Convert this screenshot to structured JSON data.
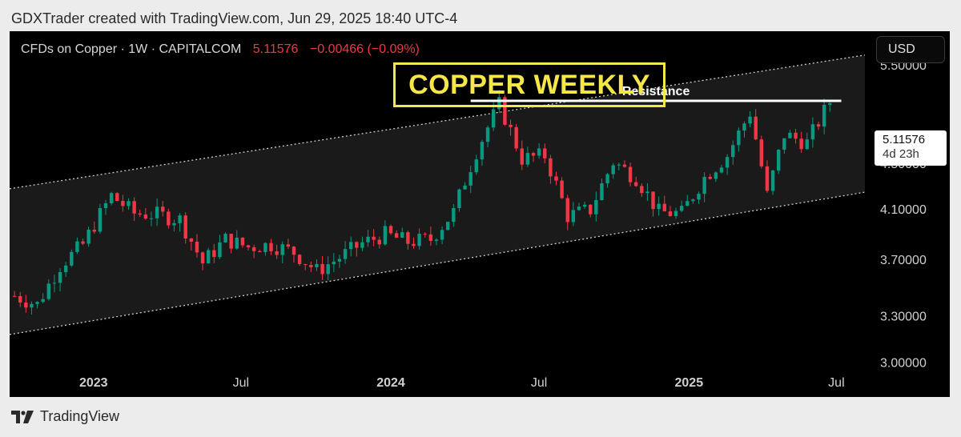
{
  "caption": "GDXTrader created with TradingView.com, Jun 29, 2025 18:40 UTC-4",
  "header": {
    "symbol": "CFDs on Copper · 1W · CAPITALCOM",
    "price": "5.11576",
    "change": "−0.00466 (−0.09%)",
    "currency": "USD"
  },
  "chart_title": "COPPER WEEKLY",
  "footer": {
    "brand": "TradingView"
  },
  "price_tag": {
    "price": "5.11576",
    "countdown": "4d 23h"
  },
  "colors": {
    "up": "#089981",
    "down": "#f23645",
    "accent": "#f5e64a",
    "background": "#000000"
  },
  "icons": [
    "tradingview-logo-icon"
  ],
  "chart_data": {
    "type": "candlestick",
    "timeframe": "1W",
    "scale": "log",
    "ylim": [
      2.8,
      5.9
    ],
    "y_ticks": [
      "5.50000",
      "4.50000",
      "4.10000",
      "3.70000",
      "3.30000",
      "3.00000"
    ],
    "x_ticks": [
      "2023",
      "Jul",
      "2024",
      "Jul",
      "2025",
      "Jul"
    ],
    "x_tick_dates": [
      "2023-01-01",
      "2023-07-01",
      "2024-01-01",
      "2024-07-01",
      "2025-01-01",
      "2025-07-01"
    ],
    "xlim": [
      "2022-09-20",
      "2025-08-05"
    ],
    "annotations": [
      {
        "label": "Resistance",
        "type": "horizontal_line",
        "price": 5.12,
        "from": "2024-04-08",
        "to": "2025-07-07"
      },
      {
        "type": "channel_upper",
        "from": {
          "date": "2022-09-20",
          "price": 4.28
        },
        "to": {
          "date": "2025-08-05",
          "price": 5.62
        }
      },
      {
        "type": "channel_lower",
        "from": {
          "date": "2022-09-20",
          "price": 3.18
        },
        "to": {
          "date": "2025-08-05",
          "price": 4.25
        }
      }
    ],
    "guide_closes": [
      [
        "2022-09-26",
        3.44
      ],
      [
        "2022-10-24",
        3.38
      ],
      [
        "2022-11-21",
        3.66
      ],
      [
        "2022-12-19",
        3.82
      ],
      [
        "2023-01-23",
        4.22
      ],
      [
        "2023-02-20",
        4.07
      ],
      [
        "2023-03-20",
        4.06
      ],
      [
        "2023-04-17",
        4.02
      ],
      [
        "2023-05-15",
        3.68
      ],
      [
        "2023-06-12",
        3.86
      ],
      [
        "2023-07-10",
        3.8
      ],
      [
        "2023-08-07",
        3.82
      ],
      [
        "2023-09-04",
        3.76
      ],
      [
        "2023-10-02",
        3.62
      ],
      [
        "2023-10-30",
        3.72
      ],
      [
        "2023-11-27",
        3.83
      ],
      [
        "2023-12-25",
        3.9
      ],
      [
        "2024-01-22",
        3.84
      ],
      [
        "2024-02-19",
        3.86
      ],
      [
        "2024-03-18",
        4.08
      ],
      [
        "2024-04-15",
        4.62
      ],
      [
        "2024-05-13",
        5.08
      ],
      [
        "2024-06-10",
        4.55
      ],
      [
        "2024-07-08",
        4.58
      ],
      [
        "2024-08-05",
        4.05
      ],
      [
        "2024-09-02",
        4.1
      ],
      [
        "2024-09-30",
        4.52
      ],
      [
        "2024-10-28",
        4.38
      ],
      [
        "2024-11-25",
        4.08
      ],
      [
        "2024-12-23",
        4.07
      ],
      [
        "2025-01-20",
        4.38
      ],
      [
        "2025-02-17",
        4.58
      ],
      [
        "2025-03-17",
        5.0
      ],
      [
        "2025-04-07",
        4.22
      ],
      [
        "2025-04-28",
        4.78
      ],
      [
        "2025-05-26",
        4.7
      ],
      [
        "2025-06-23",
        5.11
      ]
    ]
  }
}
